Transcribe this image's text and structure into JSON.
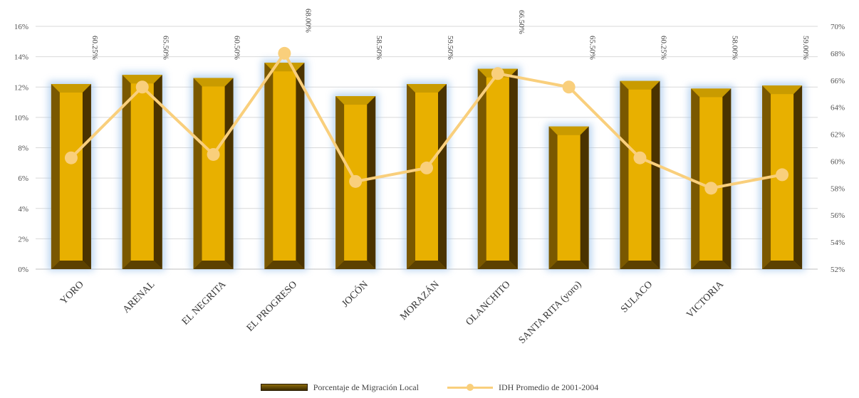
{
  "chart_data": {
    "type": "bar",
    "categories": [
      "YORO",
      "ARENAL",
      "EL NEGRITA",
      "EL PROGRESO",
      "JOCÓN",
      "MORAZÁN",
      "OLANCHITO",
      "SANTA RITA (yoro)",
      "SULACO",
      "VICTORIA",
      ""
    ],
    "series": [
      {
        "name": "Porcentaje de Migración Local",
        "type": "bar",
        "axis": "left",
        "values": [
          12.2,
          12.8,
          12.6,
          13.6,
          11.4,
          12.2,
          13.2,
          9.4,
          12.4,
          11.9,
          12.1
        ],
        "color": "#e8b000"
      },
      {
        "name": "IDH Promedio de 2001-2004",
        "type": "line",
        "axis": "right",
        "values": [
          60.25,
          65.5,
          60.5,
          68.0,
          58.5,
          59.5,
          66.5,
          65.5,
          60.25,
          58.0,
          59.0
        ],
        "labels": [
          "60.25%",
          "65.50%",
          "60.50%",
          "68.00%",
          "58.50%",
          "59.50%",
          "66.50%",
          "65.50%",
          "60.25%",
          "58.00%",
          "59.00%"
        ],
        "color": "#f9cf7c"
      }
    ],
    "y_left": {
      "ylim": [
        0,
        16
      ],
      "ticks": [
        "16%",
        "14%",
        "12%",
        "10%",
        "8%",
        "6%",
        "4%",
        "2%",
        "0%"
      ]
    },
    "y_right": {
      "ylim": [
        52,
        70
      ],
      "ticks": [
        "70%",
        "68%",
        "66%",
        "64%",
        "62%",
        "60%",
        "58%",
        "56%",
        "54%",
        "52%"
      ]
    },
    "grid": true,
    "legend_position": "bottom"
  }
}
